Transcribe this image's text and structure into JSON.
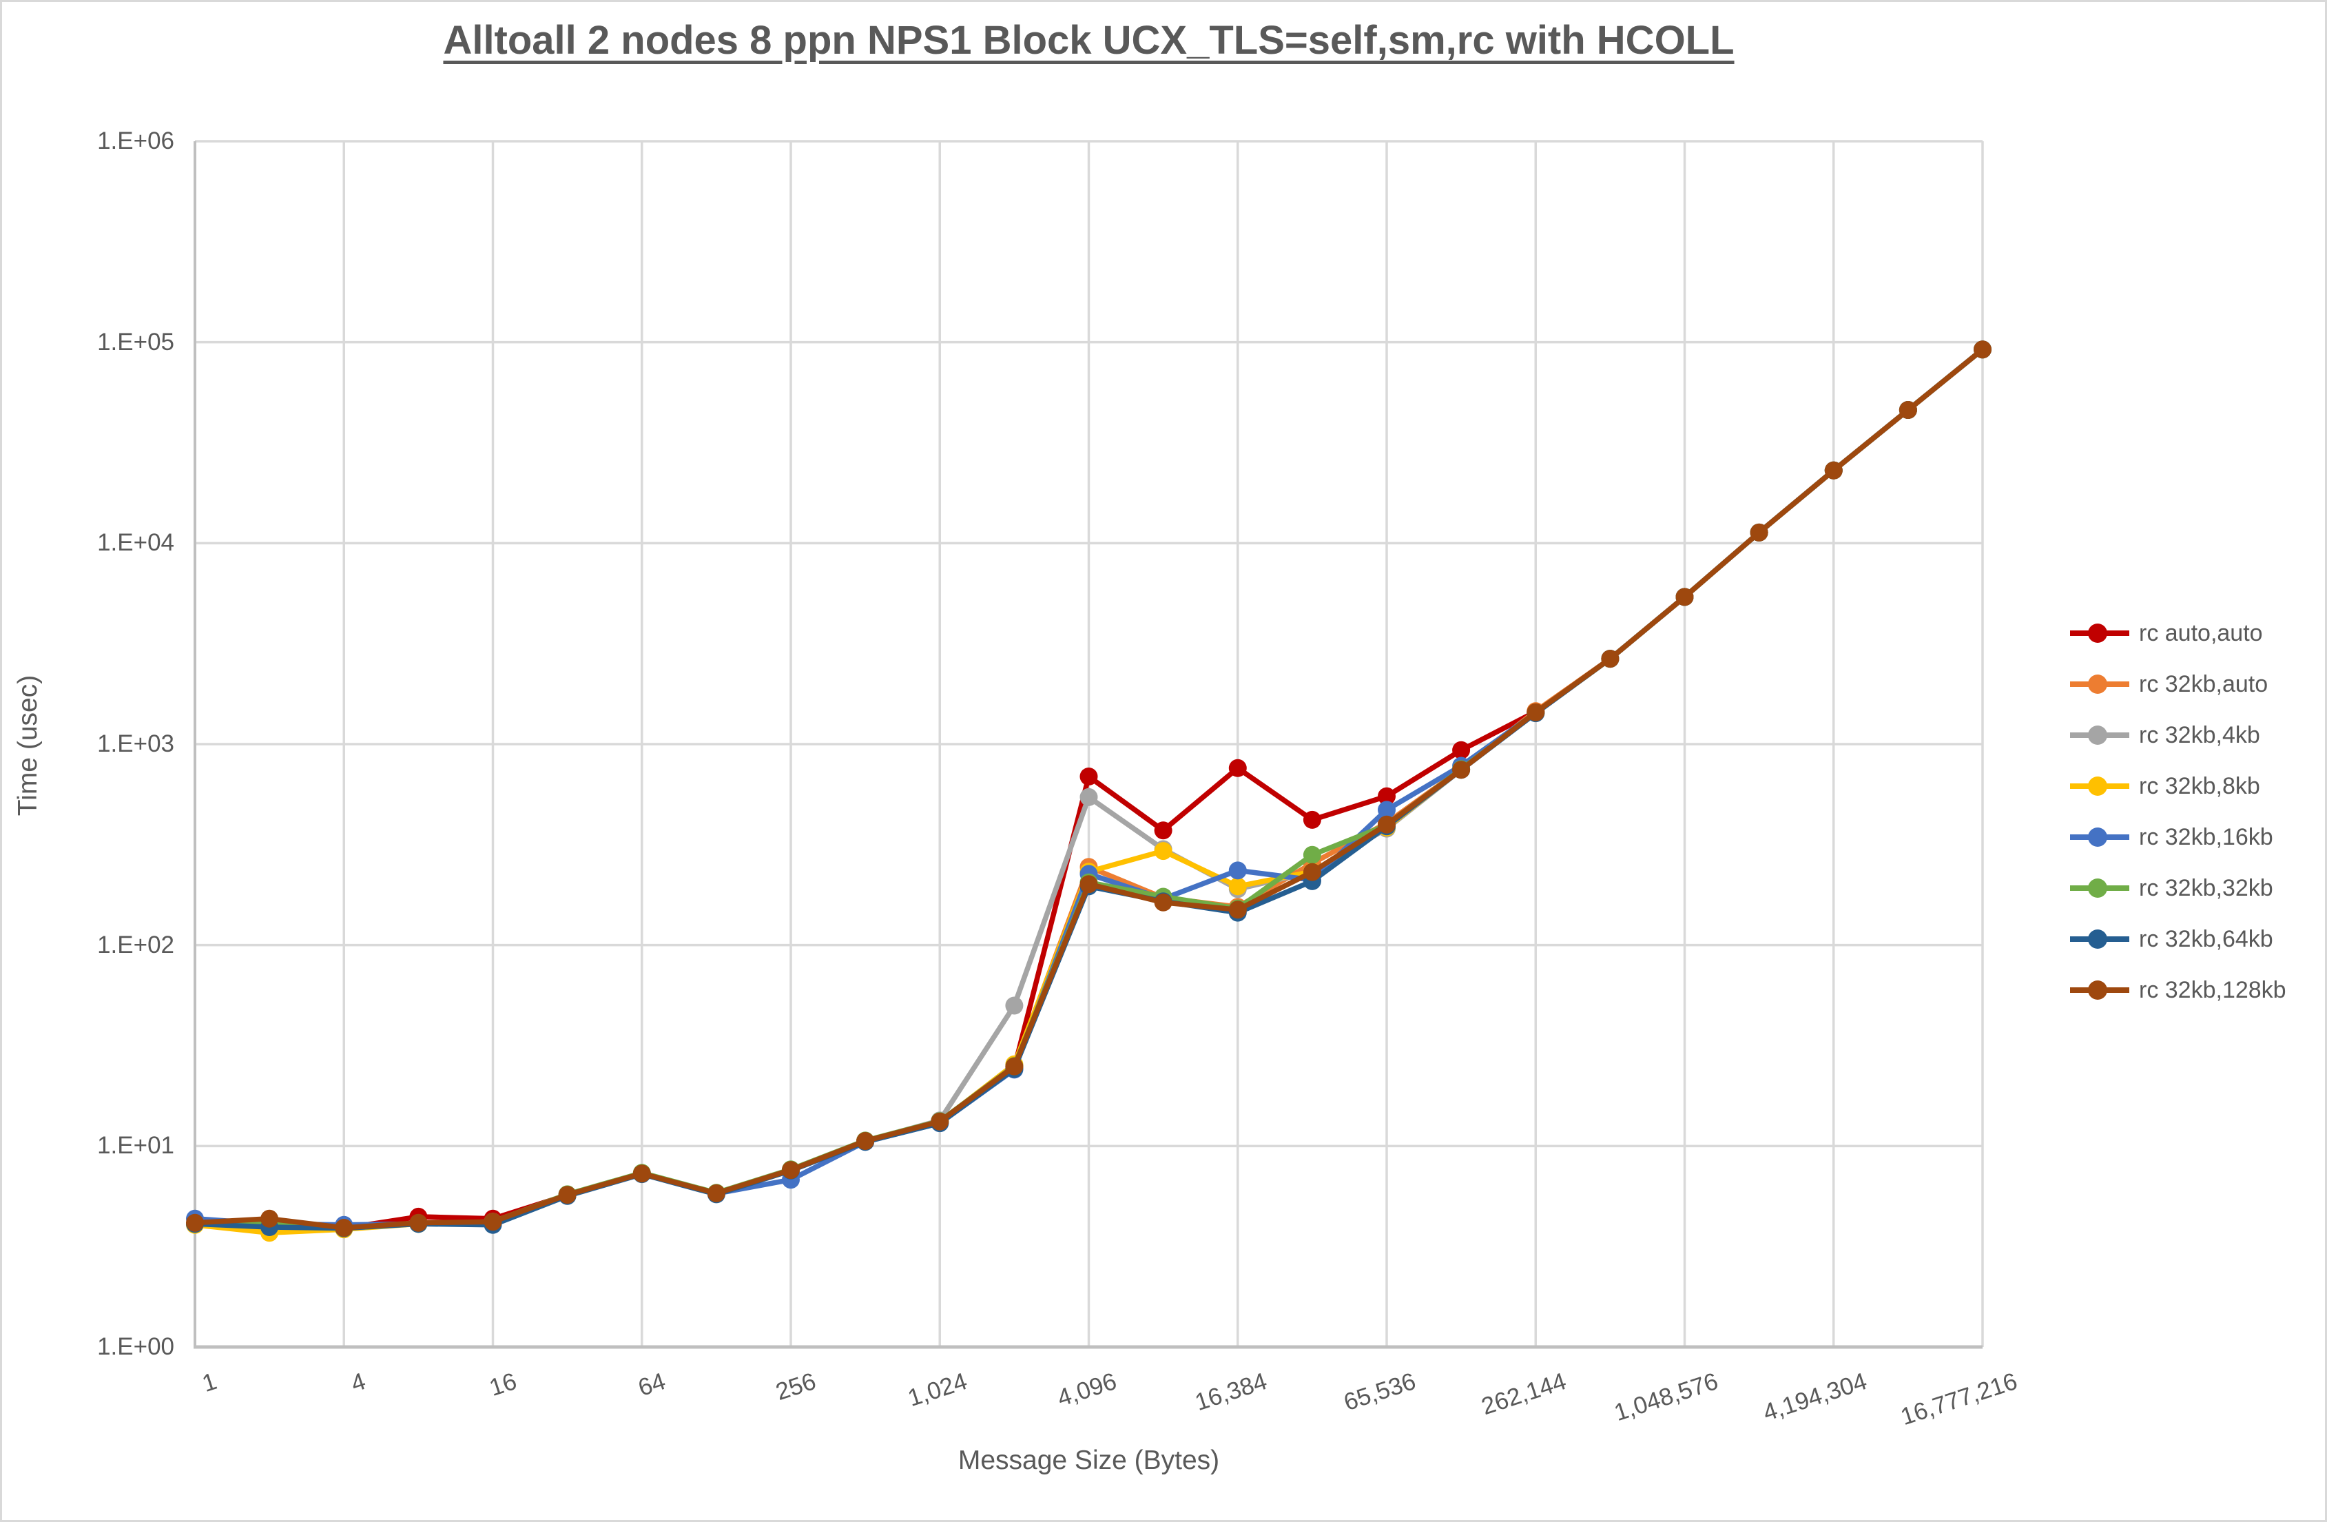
{
  "title": "Alltoall 2 nodes 8 ppn NPS1 Block UCX_TLS=self,sm,rc with HCOLL",
  "x_axis_title": "Message Size (Bytes)",
  "y_axis_title": "Time (usec)",
  "colors": {
    "text": "#595959",
    "gridline": "#D9D9D9",
    "axis_line": "#BFBFBF",
    "background": "#FFFFFF"
  },
  "chart_data": {
    "type": "line",
    "x_scale": "log2",
    "y_scale": "log10",
    "ylim": [
      1,
      1000000
    ],
    "xlim": [
      1,
      16777216
    ],
    "grid": true,
    "legend_position": "right",
    "title": "Alltoall 2 nodes 8 ppn NPS1 Block UCX_TLS=self,sm,rc with HCOLL",
    "xlabel": "Message Size (Bytes)",
    "ylabel": "Time (usec)",
    "x_ticks": [
      {
        "label": "1",
        "value": 1
      },
      {
        "label": "4",
        "value": 4
      },
      {
        "label": "16",
        "value": 16
      },
      {
        "label": "64",
        "value": 64
      },
      {
        "label": "256",
        "value": 256
      },
      {
        "label": "1,024",
        "value": 1024
      },
      {
        "label": "4,096",
        "value": 4096
      },
      {
        "label": "16,384",
        "value": 16384
      },
      {
        "label": "65,536",
        "value": 65536
      },
      {
        "label": "262,144",
        "value": 262144
      },
      {
        "label": "1,048,576",
        "value": 1048576
      },
      {
        "label": "4,194,304",
        "value": 4194304
      },
      {
        "label": "16,777,216",
        "value": 16777216
      }
    ],
    "y_ticks": [
      {
        "label": "1.E+00",
        "value": 1
      },
      {
        "label": "1.E+01",
        "value": 10
      },
      {
        "label": "1.E+02",
        "value": 100
      },
      {
        "label": "1.E+03",
        "value": 1000
      },
      {
        "label": "1.E+04",
        "value": 10000
      },
      {
        "label": "1.E+05",
        "value": 100000
      },
      {
        "label": "1.E+06",
        "value": 1000000
      }
    ],
    "x": [
      1,
      2,
      4,
      8,
      16,
      32,
      64,
      128,
      256,
      512,
      1024,
      2048,
      4096,
      8192,
      16384,
      32768,
      65536,
      131072,
      262144,
      524288,
      1048576,
      2097152,
      4194304,
      8388608,
      16777216
    ],
    "series": [
      {
        "name": "rc auto,auto",
        "color": "#C00000",
        "values": [
          4.1,
          4.1,
          3.9,
          4.45,
          4.35,
          5.7,
          7.3,
          5.8,
          7.6,
          10.6,
          13.2,
          24.5,
          690,
          372,
          760,
          420,
          550,
          933,
          1450,
          2660,
          5400,
          11300,
          23000,
          46000,
          92000
        ]
      },
      {
        "name": "rc 32kb,auto",
        "color": "#ED7D31",
        "values": [
          4.1,
          4.1,
          3.9,
          4.1,
          4.2,
          5.7,
          7.3,
          5.8,
          7.6,
          10.6,
          13.2,
          24.8,
          245,
          172,
          155,
          255,
          405,
          750,
          1460,
          2660,
          5400,
          11300,
          23000,
          46000,
          92000
        ]
      },
      {
        "name": "rc 32kb,4kb",
        "color": "#A5A5A5",
        "values": [
          4.1,
          4.05,
          3.9,
          4.1,
          4.2,
          5.7,
          7.3,
          5.8,
          7.6,
          10.6,
          13.4,
          50,
          545,
          300,
          190,
          232,
          380,
          745,
          1430,
          2660,
          5400,
          11300,
          23000,
          46000,
          92000
        ]
      },
      {
        "name": "rc 32kb,8kb",
        "color": "#FFC000",
        "values": [
          4.05,
          3.7,
          3.85,
          4.1,
          4.15,
          5.7,
          7.3,
          5.8,
          7.6,
          10.6,
          13.2,
          25.5,
          232,
          294,
          196,
          232,
          385,
          748,
          1430,
          2660,
          5400,
          11300,
          23000,
          46000,
          92000
        ]
      },
      {
        "name": "rc 32kb,16kb",
        "color": "#4472C4",
        "values": [
          4.35,
          4.1,
          4.05,
          4.1,
          4.2,
          5.7,
          7.3,
          5.8,
          6.8,
          10.5,
          13.0,
          24.0,
          226,
          170,
          235,
          211,
          471,
          780,
          1430,
          2660,
          5400,
          11300,
          23000,
          46000,
          92000
        ]
      },
      {
        "name": "rc 32kb,32kb",
        "color": "#70AD47",
        "values": [
          4.1,
          4.2,
          3.9,
          4.1,
          4.2,
          5.75,
          7.35,
          5.85,
          7.65,
          10.65,
          13.3,
          25.0,
          205,
          174,
          152,
          281,
          395,
          750,
          1430,
          2660,
          5400,
          11300,
          23000,
          46000,
          92000
        ]
      },
      {
        "name": "rc 32kb,64kb",
        "color": "#255E91",
        "values": [
          4.1,
          3.95,
          3.9,
          4.1,
          4.05,
          5.65,
          7.25,
          5.75,
          7.55,
          10.5,
          13.0,
          24.2,
          196,
          165,
          145,
          208,
          390,
          745,
          1425,
          2660,
          5400,
          11300,
          23000,
          46000,
          92000
        ]
      },
      {
        "name": "rc 32kb,128kb",
        "color": "#9E480E",
        "values": [
          4.15,
          4.35,
          3.92,
          4.15,
          4.2,
          5.72,
          7.3,
          5.82,
          7.6,
          10.6,
          13.25,
          24.9,
          201,
          163,
          150,
          231,
          398,
          745,
          1440,
          2660,
          5400,
          11300,
          23000,
          46000,
          92000
        ]
      }
    ]
  }
}
